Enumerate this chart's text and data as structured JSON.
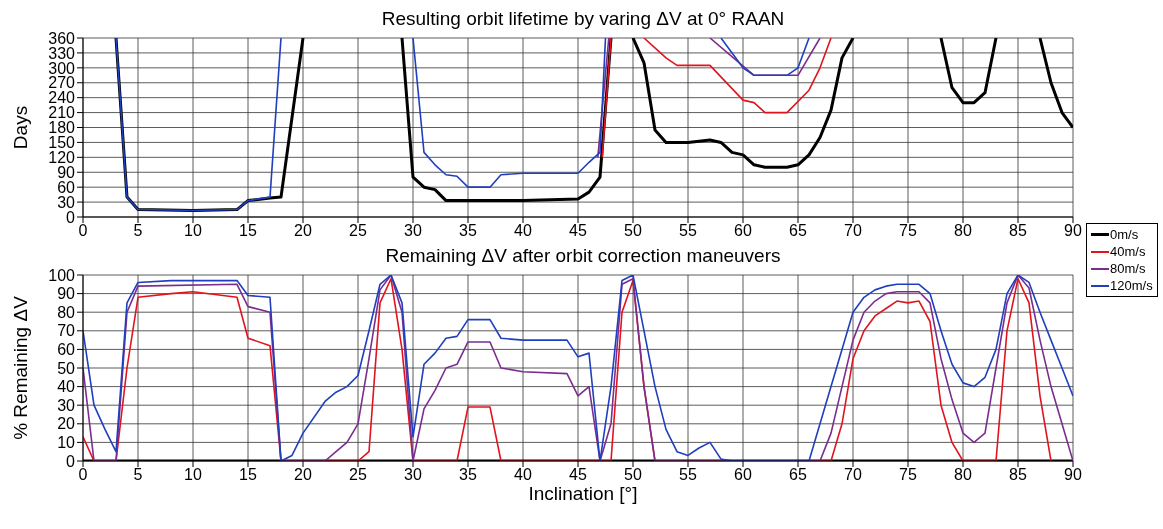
{
  "chart_data": [
    {
      "type": "line",
      "title": "Resulting orbit lifetime by varing ΔV at 0° RAAN",
      "ylabel": "Days",
      "xlim": [
        0,
        90
      ],
      "xticks": [
        0,
        5,
        10,
        15,
        20,
        25,
        30,
        35,
        40,
        45,
        50,
        55,
        60,
        65,
        70,
        75,
        80,
        85,
        90
      ],
      "ylim": [
        0,
        360
      ],
      "yticks": [
        0,
        30,
        60,
        90,
        120,
        150,
        180,
        210,
        240,
        270,
        300,
        330,
        360
      ],
      "grid": true,
      "legend": "right",
      "series": [
        {
          "name": "0m/s",
          "color": "#000000",
          "x": [
            3,
            4,
            5,
            10,
            14,
            15,
            17,
            18,
            20,
            21,
            29,
            30,
            31,
            32,
            33,
            40,
            45,
            46,
            47,
            48,
            49,
            50,
            51,
            52,
            53,
            55,
            57,
            58,
            59,
            60,
            61,
            62,
            63,
            64,
            65,
            66,
            67,
            68,
            69,
            70,
            71,
            78,
            79,
            80,
            81,
            82,
            83,
            84,
            87,
            88,
            89,
            90
          ],
          "values": [
            360,
            40,
            15,
            13,
            15,
            33,
            38,
            40,
            360,
            null,
            360,
            80,
            60,
            55,
            33,
            33,
            36,
            50,
            80,
            360,
            null,
            360,
            310,
            175,
            150,
            150,
            155,
            150,
            130,
            125,
            105,
            100,
            100,
            100,
            105,
            125,
            160,
            215,
            320,
            360,
            null,
            360,
            260,
            230,
            230,
            250,
            360,
            null,
            360,
            270,
            210,
            180
          ]
        },
        {
          "name": "40m/s",
          "color": "#e0141e",
          "x": [
            47.2,
            48,
            48.5,
            49,
            51,
            53,
            54,
            57,
            60,
            61,
            62,
            64,
            66,
            67,
            68
          ],
          "values": [
            120,
            360,
            null,
            null,
            360,
            320,
            305,
            305,
            235,
            230,
            210,
            210,
            255,
            300,
            360
          ]
        },
        {
          "name": "80m/s",
          "color": "#7b2d8e",
          "x": [
            46.8,
            47.8,
            48.5,
            49,
            57,
            61,
            65,
            67
          ],
          "values": [
            120,
            360,
            null,
            null,
            360,
            285,
            285,
            360
          ]
        },
        {
          "name": "120m/s",
          "color": "#1f3fbf",
          "x": [
            3,
            4,
            5,
            10,
            14,
            15,
            17,
            18,
            19,
            30,
            31,
            32,
            33,
            34,
            35,
            37,
            38,
            40,
            45,
            46,
            47,
            47.5,
            49,
            58,
            60,
            61,
            64,
            65,
            66
          ],
          "values": [
            360,
            40,
            15,
            13,
            15,
            33,
            40,
            360,
            null,
            360,
            130,
            105,
            85,
            82,
            60,
            60,
            85,
            88,
            88,
            110,
            130,
            360,
            null,
            360,
            300,
            285,
            285,
            300,
            360
          ]
        }
      ]
    },
    {
      "type": "line",
      "title": "Remaining ΔV after orbit correction maneuvers",
      "xlabel": "Inclination [°]",
      "ylabel": "% Remaining ΔV",
      "xlim": [
        0,
        90
      ],
      "xticks": [
        0,
        5,
        10,
        15,
        20,
        25,
        30,
        35,
        40,
        45,
        50,
        55,
        60,
        65,
        70,
        75,
        80,
        85,
        90
      ],
      "ylim": [
        0,
        100
      ],
      "yticks": [
        0,
        10,
        20,
        30,
        40,
        50,
        60,
        70,
        80,
        90,
        100
      ],
      "grid": true,
      "series": [
        {
          "color": "#000000",
          "x": [
            0,
            90
          ],
          "values": [
            0,
            0
          ]
        },
        {
          "color": "#e0141e",
          "x": [
            0,
            1,
            3,
            4,
            5,
            8,
            10,
            14,
            15,
            17,
            18,
            25,
            26,
            27,
            28,
            29,
            30,
            34,
            35,
            37,
            38,
            48,
            49,
            50,
            51,
            52,
            68,
            69,
            70,
            71,
            72,
            73,
            74,
            75,
            76,
            77,
            78,
            79,
            80,
            83,
            84,
            85,
            86,
            87,
            88
          ],
          "values": [
            13,
            0,
            0,
            50,
            88,
            90,
            91,
            88,
            66,
            62,
            0,
            0,
            5,
            85,
            98,
            60,
            0,
            0,
            29,
            29,
            0,
            0,
            80,
            97,
            40,
            0,
            0,
            20,
            55,
            70,
            78,
            82,
            86,
            85,
            86,
            75,
            30,
            10,
            0,
            0,
            70,
            98,
            85,
            35,
            0
          ]
        },
        {
          "color": "#7b2d8e",
          "x": [
            0,
            1,
            3,
            4,
            5,
            14,
            15,
            17,
            18,
            22,
            23,
            24,
            25,
            26,
            27,
            28,
            29,
            30,
            31,
            32,
            33,
            34,
            35,
            37,
            38,
            40,
            44,
            45,
            46,
            47,
            48,
            49,
            50,
            51,
            52,
            67,
            68,
            69,
            70,
            71,
            72,
            73,
            74,
            76,
            77,
            78,
            79,
            80,
            81,
            82,
            83,
            84,
            85,
            86,
            87,
            88,
            89,
            90
          ],
          "values": [
            50,
            0,
            0,
            80,
            94,
            95,
            83,
            80,
            0,
            0,
            5,
            10,
            20,
            55,
            92,
            100,
            80,
            0,
            28,
            38,
            50,
            52,
            64,
            64,
            50,
            48,
            47,
            35,
            40,
            0,
            20,
            95,
            98,
            40,
            0,
            0,
            15,
            40,
            65,
            80,
            86,
            90,
            91,
            91,
            85,
            55,
            33,
            15,
            10,
            15,
            50,
            85,
            100,
            93,
            65,
            40,
            20,
            0
          ]
        },
        {
          "color": "#1f3fbf",
          "x": [
            0,
            1,
            2,
            3,
            4,
            5,
            8,
            14,
            15,
            17,
            18,
            19,
            20,
            22,
            23,
            24,
            25,
            26,
            27,
            28,
            29,
            30,
            31,
            32,
            33,
            34,
            35,
            37,
            38,
            40,
            44,
            45,
            46,
            47,
            48,
            49,
            50,
            51,
            52,
            53,
            54,
            55,
            56,
            57,
            58,
            59,
            66,
            67,
            68,
            69,
            70,
            71,
            72,
            73,
            74,
            76,
            77,
            78,
            79,
            80,
            81,
            82,
            83,
            84,
            85,
            86,
            87,
            88,
            89,
            90
          ],
          "values": [
            70,
            30,
            17,
            5,
            85,
            96,
            97,
            97,
            89,
            88,
            0,
            3,
            15,
            32,
            37,
            40,
            46,
            70,
            95,
            100,
            85,
            13,
            52,
            58,
            66,
            67,
            76,
            76,
            66,
            65,
            65,
            56,
            58,
            0,
            40,
            97,
            100,
            70,
            40,
            17,
            5,
            3,
            7,
            10,
            1,
            0,
            0,
            20,
            40,
            60,
            80,
            88,
            92,
            94,
            95,
            95,
            90,
            70,
            52,
            42,
            40,
            45,
            60,
            90,
            100,
            96,
            80,
            65,
            50,
            35
          ]
        }
      ]
    }
  ]
}
